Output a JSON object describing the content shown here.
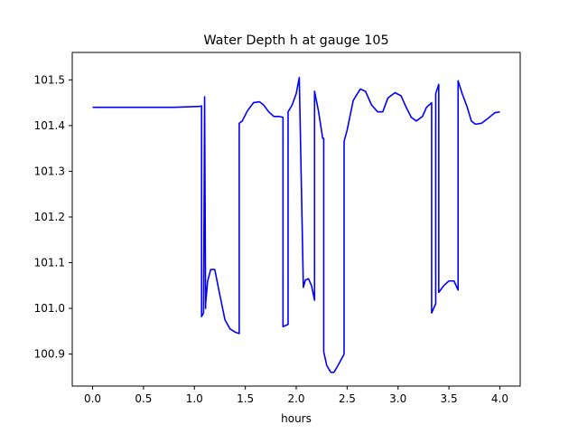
{
  "chart_data": {
    "type": "line",
    "title": "Water Depth h at gauge 105",
    "xlabel": "hours",
    "ylabel": "",
    "xlim": [
      -0.2,
      4.2
    ],
    "ylim": [
      100.83,
      101.56
    ],
    "grid": false,
    "x_ticks": [
      0.0,
      0.5,
      1.0,
      1.5,
      2.0,
      2.5,
      3.0,
      3.5,
      4.0
    ],
    "x_tick_labels": [
      "0.0",
      "0.5",
      "1.0",
      "1.5",
      "2.0",
      "2.5",
      "3.0",
      "3.5",
      "4.0"
    ],
    "y_ticks": [
      100.9,
      101.0,
      101.1,
      101.2,
      101.3,
      101.4,
      101.5
    ],
    "y_tick_labels": [
      "100.9",
      "101.0",
      "101.1",
      "101.2",
      "101.3",
      "101.4",
      "101.5"
    ],
    "series": [
      {
        "color": "#0000ff",
        "x": [
          0.0,
          0.8,
          1.05,
          1.07,
          1.07,
          1.09,
          1.1,
          1.11,
          1.11,
          1.13,
          1.16,
          1.2,
          1.24,
          1.3,
          1.35,
          1.4,
          1.44,
          1.44,
          1.47,
          1.52,
          1.58,
          1.64,
          1.68,
          1.73,
          1.78,
          1.83,
          1.87,
          1.87,
          1.92,
          1.92,
          1.96,
          2.0,
          2.03,
          2.07,
          2.07,
          2.09,
          2.12,
          2.15,
          2.18,
          2.18,
          2.22,
          2.26,
          2.27,
          2.27,
          2.3,
          2.34,
          2.37,
          2.41,
          2.47,
          2.47,
          2.5,
          2.56,
          2.63,
          2.68,
          2.74,
          2.8,
          2.85,
          2.9,
          2.97,
          3.03,
          3.08,
          3.13,
          3.18,
          3.24,
          3.28,
          3.32,
          3.33,
          3.33,
          3.37,
          3.37,
          3.4,
          3.4,
          3.45,
          3.5,
          3.55,
          3.59,
          3.59,
          3.63,
          3.68,
          3.72,
          3.76,
          3.82,
          3.88,
          3.95,
          4.0
        ],
        "y": [
          101.44,
          101.44,
          101.442,
          101.443,
          100.982,
          100.99,
          101.463,
          101.0,
          101.01,
          101.06,
          101.085,
          101.085,
          101.04,
          100.975,
          100.955,
          100.948,
          100.945,
          101.405,
          101.41,
          101.432,
          101.45,
          101.452,
          101.445,
          101.43,
          101.42,
          101.42,
          101.418,
          100.96,
          100.965,
          101.43,
          101.445,
          101.47,
          101.505,
          101.046,
          101.046,
          101.062,
          101.065,
          101.05,
          101.018,
          101.475,
          101.43,
          101.372,
          101.372,
          100.905,
          100.875,
          100.86,
          100.86,
          100.875,
          100.9,
          101.365,
          101.39,
          101.455,
          101.48,
          101.475,
          101.445,
          101.43,
          101.43,
          101.46,
          101.472,
          101.465,
          101.44,
          101.418,
          101.41,
          101.42,
          101.44,
          101.448,
          101.45,
          100.99,
          101.01,
          101.47,
          101.49,
          101.035,
          101.05,
          101.06,
          101.06,
          101.04,
          101.498,
          101.47,
          101.44,
          101.41,
          101.403,
          101.405,
          101.415,
          101.428,
          101.43
        ]
      }
    ]
  }
}
